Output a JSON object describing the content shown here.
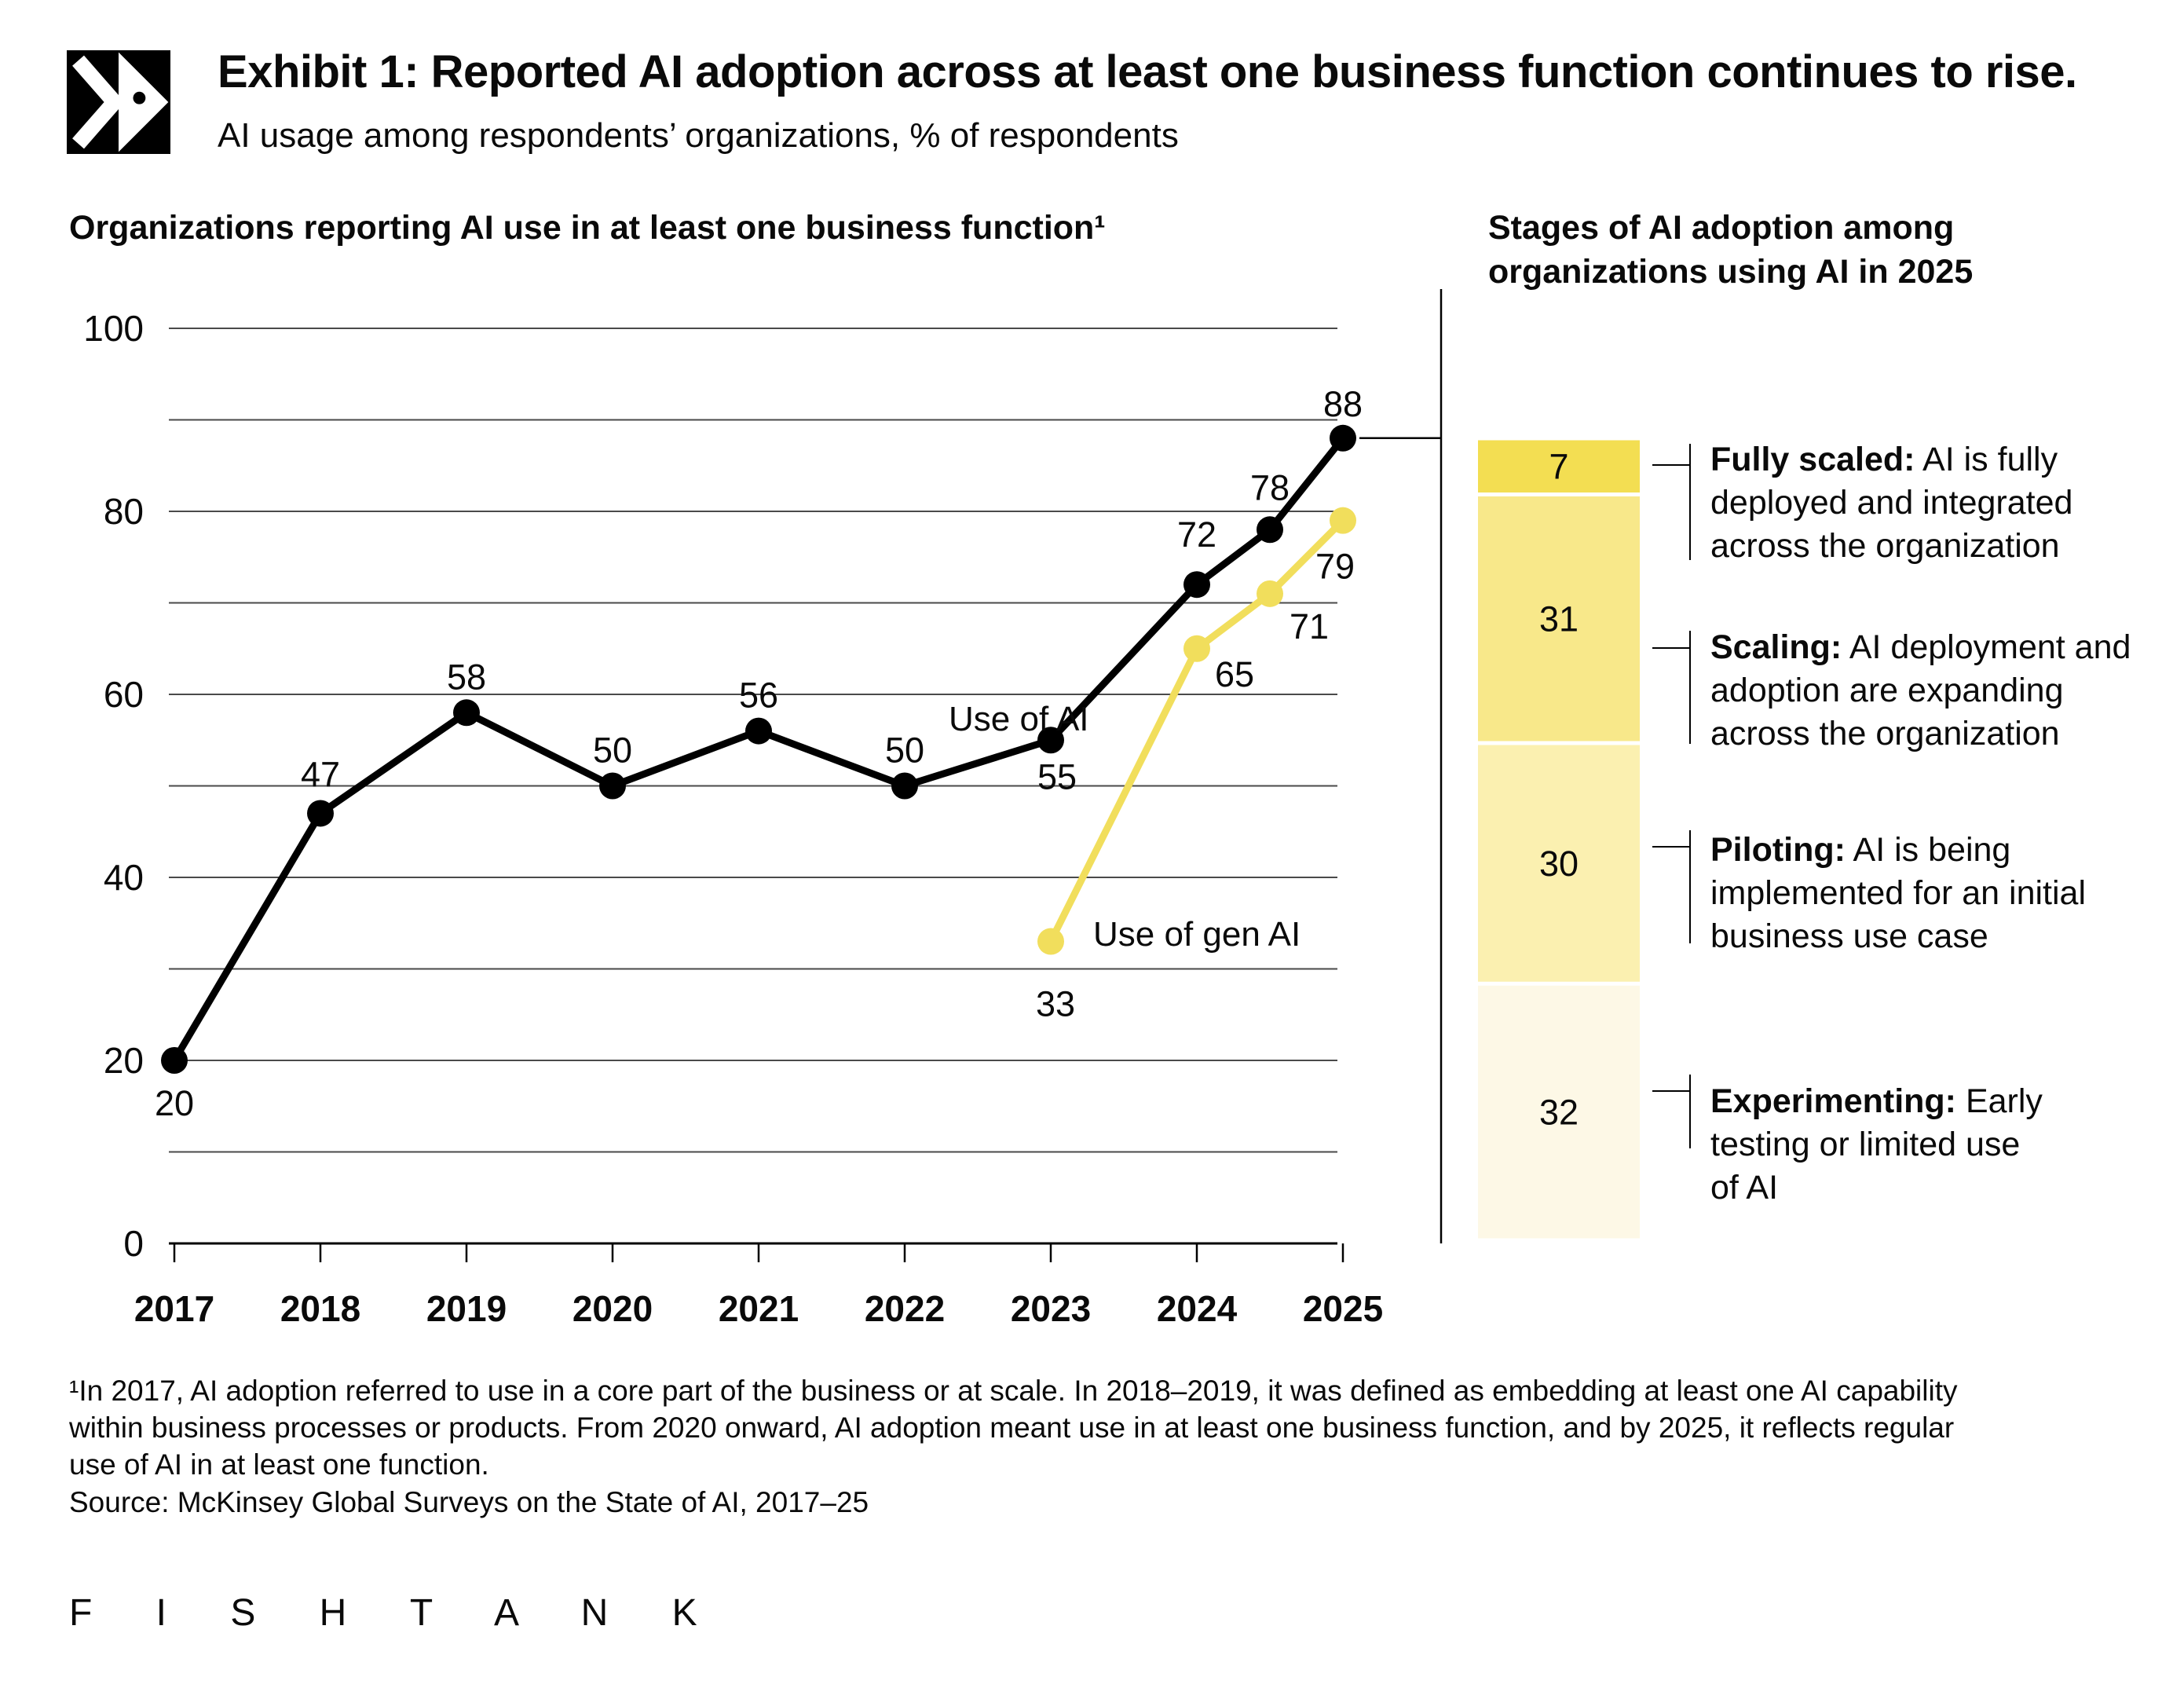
{
  "header": {
    "title": "Exhibit 1: Reported AI adoption across at least one business function continues to rise.",
    "subtitle": "AI usage among respondents’ organizations, % of respondents"
  },
  "stages_panel": {
    "title": "Stages of AI adoption among\norganizations using AI in 2025"
  },
  "chart_data": {
    "type": "line",
    "title": "Organizations reporting AI use in at least one business function¹",
    "ylim": [
      0,
      100
    ],
    "grid": true,
    "gridline_values": [
      10,
      20,
      30,
      40,
      50,
      60,
      70,
      80,
      90,
      100
    ],
    "ytick_labels": [
      "0",
      "20",
      "40",
      "60",
      "80",
      "100"
    ],
    "ytick_values": [
      0,
      20,
      40,
      60,
      80,
      100
    ],
    "x_tick_labels": [
      "2017",
      "2018",
      "2019",
      "2020",
      "2021",
      "2022",
      "2023",
      "2024",
      "2025"
    ],
    "legend_position": "inline-labels",
    "series": [
      {
        "name": "Use of AI",
        "color": "#000000",
        "x": [
          2017,
          2018,
          2019,
          2020,
          2021,
          2022,
          2023,
          2024,
          2024.5,
          2025
        ],
        "values": [
          20,
          47,
          58,
          50,
          56,
          50,
          55,
          72,
          78,
          88
        ],
        "label_offsets": [
          [
            0,
            70
          ],
          [
            0,
            -34
          ],
          [
            0,
            -30
          ],
          [
            0,
            -30
          ],
          [
            0,
            -30
          ],
          [
            0,
            -30
          ],
          [
            8,
            62
          ],
          [
            0,
            -48
          ],
          [
            0,
            -38
          ],
          [
            0,
            -28
          ]
        ]
      },
      {
        "name": "Use of gen AI",
        "color": "#F1DE5C",
        "x": [
          2023,
          2024,
          2024.5,
          2025
        ],
        "values": [
          33,
          65,
          71,
          79
        ],
        "label_offsets": [
          [
            6,
            95
          ],
          [
            48,
            48
          ],
          [
            50,
            57
          ],
          [
            -10,
            74
          ]
        ]
      }
    ],
    "series_labels": [
      {
        "text": "Use of AI",
        "x": 1208,
        "y": 930
      },
      {
        "text": "Use of gen AI",
        "x": 1392,
        "y": 1204
      }
    ],
    "stages_bar": {
      "total": 100,
      "stages": [
        {
          "value": 7,
          "color": "#F3DE52",
          "term": "Fully scaled:",
          "desc": " AI is fully\ndeployed and integrated\nacross the organization"
        },
        {
          "value": 31,
          "color": "#F8E88A",
          "term": "Scaling:",
          "desc": " AI deployment and\nadoption are expanding\nacross the organization"
        },
        {
          "value": 30,
          "color": "#FBF0B0",
          "term": "Piloting:",
          "desc": " AI is being\nimplemented for an initial\nbusiness use case"
        },
        {
          "value": 32,
          "color": "#FDF8E6",
          "term": "Experimenting:",
          "desc": " Early\ntesting or limited use\nof AI"
        }
      ]
    }
  },
  "footnote": "¹In 2017, AI adoption referred to use in a core part of the business or at scale. In 2018–2019, it was defined as embedding at least one AI capability\nwithin business processes or products. From 2020 onward, AI adoption meant use in at least one business function, and by 2025, it reflects regular\nuse of AI in at least one function.",
  "source": "Source: McKinsey Global Surveys on the State of AI, 2017–25",
  "brand": {
    "wordmark": "F I S H T A N K"
  }
}
